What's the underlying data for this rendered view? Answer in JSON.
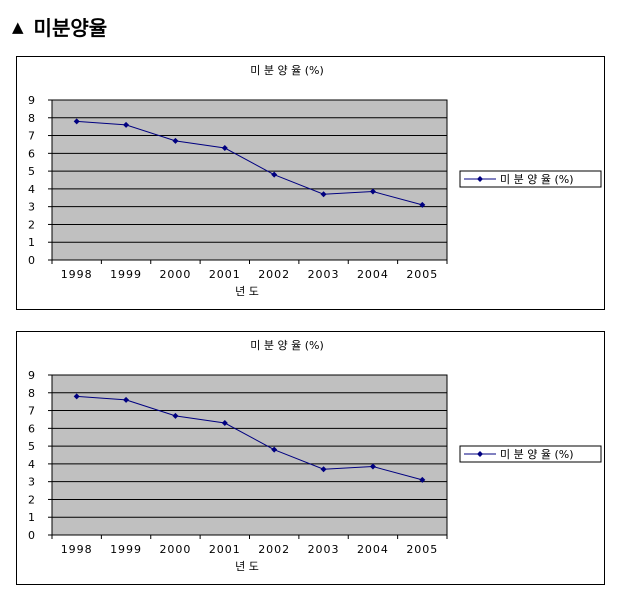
{
  "heading": {
    "marker": "▲",
    "text": "미분양율"
  },
  "chart_data": [
    {
      "type": "line",
      "title": "미 분 양 율 (%)",
      "xlabel": "년 도",
      "ylabel": "",
      "categories": [
        "1998",
        "1999",
        "2000",
        "2001",
        "2002",
        "2003",
        "2004",
        "2005"
      ],
      "yticks": [
        "0",
        "1",
        "2",
        "3",
        "4",
        "5",
        "6",
        "7",
        "8",
        "9"
      ],
      "ylim": [
        0,
        9
      ],
      "grid": true,
      "legend": "right",
      "series": [
        {
          "name": "미 분 양 율 (%)",
          "values": [
            7.8,
            7.6,
            6.7,
            6.3,
            4.8,
            3.7,
            3.85,
            3.1
          ]
        }
      ],
      "colors": {
        "plot_bg": "#c0c0c0",
        "line": "#000080",
        "grid": "#000000"
      }
    },
    {
      "type": "line",
      "title": "미 분 양 율 (%)",
      "xlabel": "년 도",
      "ylabel": "",
      "categories": [
        "1998",
        "1999",
        "2000",
        "2001",
        "2002",
        "2003",
        "2004",
        "2005"
      ],
      "yticks": [
        "0",
        "1",
        "2",
        "3",
        "4",
        "5",
        "6",
        "7",
        "8",
        "9"
      ],
      "ylim": [
        0,
        9
      ],
      "grid": true,
      "legend": "right",
      "series": [
        {
          "name": "미 분 양 율 (%)",
          "values": [
            7.8,
            7.6,
            6.7,
            6.3,
            4.8,
            3.7,
            3.85,
            3.1
          ]
        }
      ],
      "colors": {
        "plot_bg": "#c0c0c0",
        "line": "#000080",
        "grid": "#000000"
      }
    }
  ]
}
